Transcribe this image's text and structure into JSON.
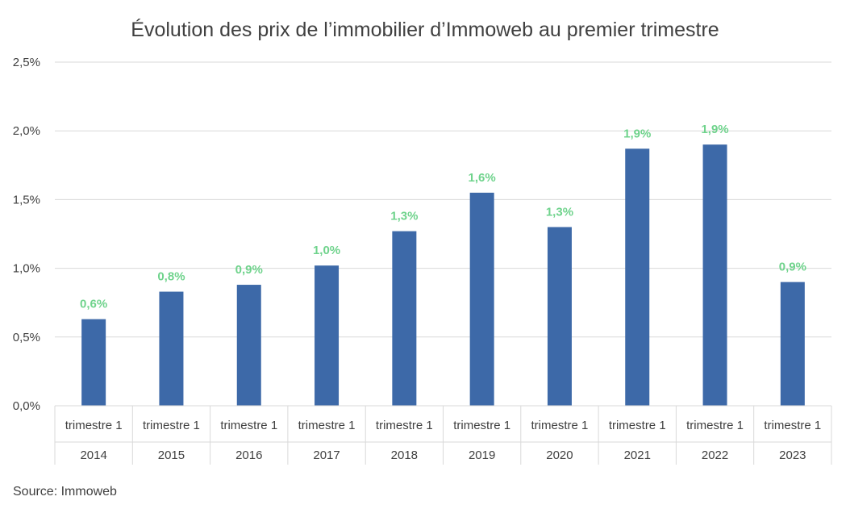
{
  "chart_data": {
    "type": "bar",
    "title": "Évolution des prix de l’immobilier d’Immoweb au premier trimestre",
    "categories": [
      {
        "quarter": "trimestre 1",
        "year": "2014"
      },
      {
        "quarter": "trimestre 1",
        "year": "2015"
      },
      {
        "quarter": "trimestre 1",
        "year": "2016"
      },
      {
        "quarter": "trimestre 1",
        "year": "2017"
      },
      {
        "quarter": "trimestre 1",
        "year": "2018"
      },
      {
        "quarter": "trimestre 1",
        "year": "2019"
      },
      {
        "quarter": "trimestre 1",
        "year": "2020"
      },
      {
        "quarter": "trimestre 1",
        "year": "2021"
      },
      {
        "quarter": "trimestre 1",
        "year": "2022"
      },
      {
        "quarter": "trimestre 1",
        "year": "2023"
      }
    ],
    "values": [
      0.63,
      0.83,
      0.88,
      1.02,
      1.27,
      1.55,
      1.3,
      1.87,
      1.9,
      0.9
    ],
    "data_labels": [
      "0,6%",
      "0,8%",
      "0,9%",
      "1,0%",
      "1,3%",
      "1,6%",
      "1,3%",
      "1,9%",
      "1,9%",
      "0,9%"
    ],
    "ylim": [
      0,
      2.5
    ],
    "yticks": [
      {
        "value": 0,
        "label": "0,0%"
      },
      {
        "value": 0.5,
        "label": "0,5%"
      },
      {
        "value": 1.0,
        "label": "1,0%"
      },
      {
        "value": 1.5,
        "label": "1,5%"
      },
      {
        "value": 2.0,
        "label": "2,0%"
      },
      {
        "value": 2.5,
        "label": "2,5%"
      }
    ],
    "xlabel": "",
    "ylabel": "",
    "grid": true,
    "legend": "none",
    "bar_color": "#3d69a8",
    "label_color": "#6fd38c",
    "source": "Source: Immoweb"
  }
}
